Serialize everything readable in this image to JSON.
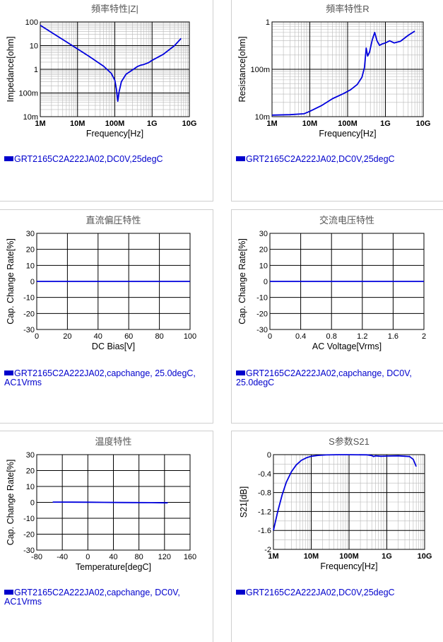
{
  "colors": {
    "series": "#0000dd",
    "grid_major": "#000000",
    "grid_minor": "#b8b8b8",
    "legend": "#0000cc"
  },
  "charts": [
    {
      "title": "頻率特性|Z|",
      "legend": "GRT2165C2A222JA02,DC0V,25degC",
      "chart_data": {
        "type": "line",
        "title": "頻率特性|Z|",
        "xlabel": "Frequency[Hz]",
        "ylabel": "Impedance[ohm]",
        "x_scale": "log",
        "y_scale": "log",
        "xlim": [
          1000000,
          10000000000
        ],
        "ylim": [
          0.01,
          100
        ],
        "x_ticks": [
          1000000,
          10000000,
          100000000,
          1000000000,
          10000000000
        ],
        "x_tick_labels": [
          "1M",
          "10M",
          "100M",
          "1G",
          "10G"
        ],
        "y_ticks": [
          0.01,
          0.1,
          1,
          10,
          100
        ],
        "y_tick_labels": [
          "10m",
          "100m",
          "1",
          "10",
          "100"
        ],
        "grid": true,
        "series": [
          {
            "x": [
              1000000,
              2000000,
              5000000,
              10000000,
              20000000,
              50000000,
              80000000,
              100000000,
              110000000,
              120000000,
              130000000,
              150000000,
              200000000,
              300000000,
              400000000,
              500000000,
              600000000,
              800000000,
              1000000000,
              2000000000,
              4000000000,
              6000000000
            ],
            "y": [
              72,
              36,
              14.5,
              7.2,
              3.6,
              1.35,
              0.68,
              0.35,
              0.15,
              0.045,
              0.11,
              0.3,
              0.62,
              0.95,
              1.3,
              1.5,
              1.6,
              1.9,
              2.4,
              4.3,
              10,
              20
            ]
          }
        ]
      }
    },
    {
      "title": "頻率特性R",
      "legend": "GRT2165C2A222JA02,DC0V,25degC",
      "chart_data": {
        "type": "line",
        "title": "頻率特性R",
        "xlabel": "Frequency[Hz]",
        "ylabel": "Resistance[ohm]",
        "x_scale": "log",
        "y_scale": "log",
        "xlim": [
          1000000,
          10000000000
        ],
        "ylim": [
          0.01,
          1
        ],
        "x_ticks": [
          1000000,
          10000000,
          100000000,
          1000000000,
          10000000000
        ],
        "x_tick_labels": [
          "1M",
          "10M",
          "100M",
          "1G",
          "10G"
        ],
        "y_ticks": [
          0.01,
          0.1,
          1
        ],
        "y_tick_labels": [
          "10m",
          "100m",
          "1"
        ],
        "grid": true,
        "series": [
          {
            "x": [
              1000000,
              3000000,
              7000000,
              10000000,
              20000000,
              40000000,
              80000000,
              120000000,
              180000000,
              240000000,
              280000000,
              310000000,
              340000000,
              380000000,
              450000000,
              520000000,
              600000000,
              700000000,
              800000000,
              1000000000,
              1300000000,
              1700000000,
              2500000000,
              4000000000,
              6000000000
            ],
            "y": [
              0.0108,
              0.011,
              0.0115,
              0.013,
              0.017,
              0.024,
              0.031,
              0.037,
              0.048,
              0.068,
              0.11,
              0.28,
              0.19,
              0.23,
              0.42,
              0.6,
              0.4,
              0.32,
              0.34,
              0.36,
              0.4,
              0.36,
              0.39,
              0.52,
              0.64
            ]
          }
        ]
      }
    },
    {
      "title": "直流偏圧特性",
      "legend": "GRT2165C2A222JA02,capchange, 25.0degC, AC1Vrms",
      "chart_data": {
        "type": "line",
        "title": "直流偏圧特性",
        "xlabel": "DC Bias[V]",
        "ylabel": "Cap. Change Rate[%]",
        "x_scale": "linear",
        "y_scale": "linear",
        "xlim": [
          0,
          100
        ],
        "ylim": [
          -30,
          30
        ],
        "x_ticks": [
          0,
          20,
          40,
          60,
          80,
          100
        ],
        "x_tick_labels": [
          "0",
          "20",
          "40",
          "60",
          "80",
          "100"
        ],
        "y_ticks": [
          -30,
          -20,
          -10,
          0,
          10,
          20,
          30
        ],
        "y_tick_labels": [
          "-30",
          "-20",
          "-10",
          "0",
          "10",
          "20",
          "30"
        ],
        "grid": true,
        "series": [
          {
            "x": [
              0,
              100
            ],
            "y": [
              0,
              0
            ]
          }
        ]
      }
    },
    {
      "title": "交流电压特性",
      "legend": "GRT2165C2A222JA02,capchange, DC0V, 25.0degC",
      "chart_data": {
        "type": "line",
        "title": "交流电压特性",
        "xlabel": "AC Voltage[Vrms]",
        "ylabel": "Cap. Change Rate[%]",
        "x_scale": "linear",
        "y_scale": "linear",
        "xlim": [
          0,
          2
        ],
        "ylim": [
          -30,
          30
        ],
        "x_ticks": [
          0,
          0.4,
          0.8,
          1.2,
          1.6,
          2
        ],
        "x_tick_labels": [
          "0",
          "0.4",
          "0.8",
          "1.2",
          "1.6",
          "2"
        ],
        "y_ticks": [
          -30,
          -20,
          -10,
          0,
          10,
          20,
          30
        ],
        "y_tick_labels": [
          "-30",
          "-20",
          "-10",
          "0",
          "10",
          "20",
          "30"
        ],
        "grid": true,
        "series": [
          {
            "x": [
              0,
              2
            ],
            "y": [
              0,
              0
            ]
          }
        ]
      }
    },
    {
      "title": "温度特性",
      "legend": "GRT2165C2A222JA02,capchange, DC0V, AC1Vrms",
      "chart_data": {
        "type": "line",
        "title": "温度特性",
        "xlabel": "Temperature[degC]",
        "ylabel": "Cap. Change Rate[%]",
        "x_scale": "linear",
        "y_scale": "linear",
        "xlim": [
          -80,
          160
        ],
        "ylim": [
          -30,
          30
        ],
        "x_ticks": [
          -80,
          -40,
          0,
          40,
          80,
          120,
          160
        ],
        "x_tick_labels": [
          "-80",
          "-40",
          "0",
          "40",
          "80",
          "120",
          "160"
        ],
        "y_ticks": [
          -30,
          -20,
          -10,
          0,
          10,
          20,
          30
        ],
        "y_tick_labels": [
          "-30",
          "-20",
          "-10",
          "0",
          "10",
          "20",
          "30"
        ],
        "grid": true,
        "series": [
          {
            "x": [
              -55,
              -25,
              0,
              25,
              50,
              75,
              100,
              125
            ],
            "y": [
              0.2,
              0.15,
              0.1,
              0,
              -0.1,
              -0.15,
              -0.2,
              -0.3
            ]
          }
        ]
      }
    },
    {
      "title": "S参数S21",
      "legend": "GRT2165C2A222JA02,DC0V,25degC",
      "chart_data": {
        "type": "line",
        "title": "S参数S21",
        "xlabel": "Frequency[Hz]",
        "ylabel": "S21[dB]",
        "x_scale": "log",
        "y_scale": "linear",
        "xlim": [
          1000000,
          10000000000
        ],
        "ylim": [
          -2,
          0
        ],
        "x_ticks": [
          1000000,
          10000000,
          100000000,
          1000000000,
          10000000000
        ],
        "x_tick_labels": [
          "1M",
          "10M",
          "100M",
          "1G",
          "10G"
        ],
        "y_ticks": [
          -2,
          -1.6,
          -1.2,
          -0.8,
          -0.4,
          0
        ],
        "y_tick_labels": [
          "-2",
          "-1.6",
          "-1.2",
          "-0.8",
          "-0.4",
          "0"
        ],
        "grid": true,
        "series": [
          {
            "x": [
              1000000,
              1300000,
              1700000,
              2200000,
              3000000,
              4000000,
              5500000,
              7500000,
              10000000,
              15000000,
              25000000,
              50000000,
              100000000,
              300000000,
              400000000,
              450000000,
              500000000,
              700000000,
              1000000000,
              2000000000,
              4000000000,
              5000000000,
              6000000000
            ],
            "y": [
              -1.6,
              -1.2,
              -0.85,
              -0.58,
              -0.36,
              -0.22,
              -0.12,
              -0.065,
              -0.035,
              -0.016,
              -0.006,
              -0.002,
              -0.001,
              -0.005,
              -0.02,
              -0.04,
              -0.025,
              -0.035,
              -0.03,
              -0.025,
              -0.04,
              -0.1,
              -0.25
            ]
          }
        ]
      }
    }
  ]
}
